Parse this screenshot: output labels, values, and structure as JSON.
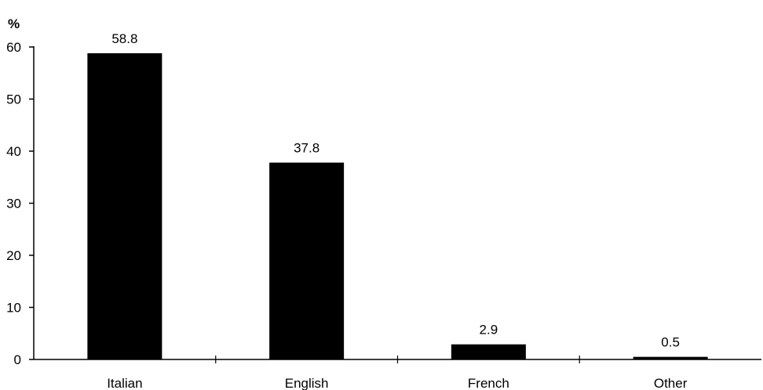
{
  "chart_data": {
    "type": "bar",
    "categories": [
      "Italian",
      "English",
      "French",
      "Other"
    ],
    "values": [
      58.8,
      37.8,
      2.9,
      0.5
    ],
    "value_labels": [
      "58.8",
      "37.8",
      "2.9",
      "0.5"
    ],
    "title": "",
    "xlabel": "",
    "ylabel": "%",
    "ylim": [
      0,
      60
    ],
    "yticks": [
      0,
      10,
      20,
      30,
      40,
      50,
      60
    ],
    "grid": false,
    "bar_color": "#000000"
  }
}
